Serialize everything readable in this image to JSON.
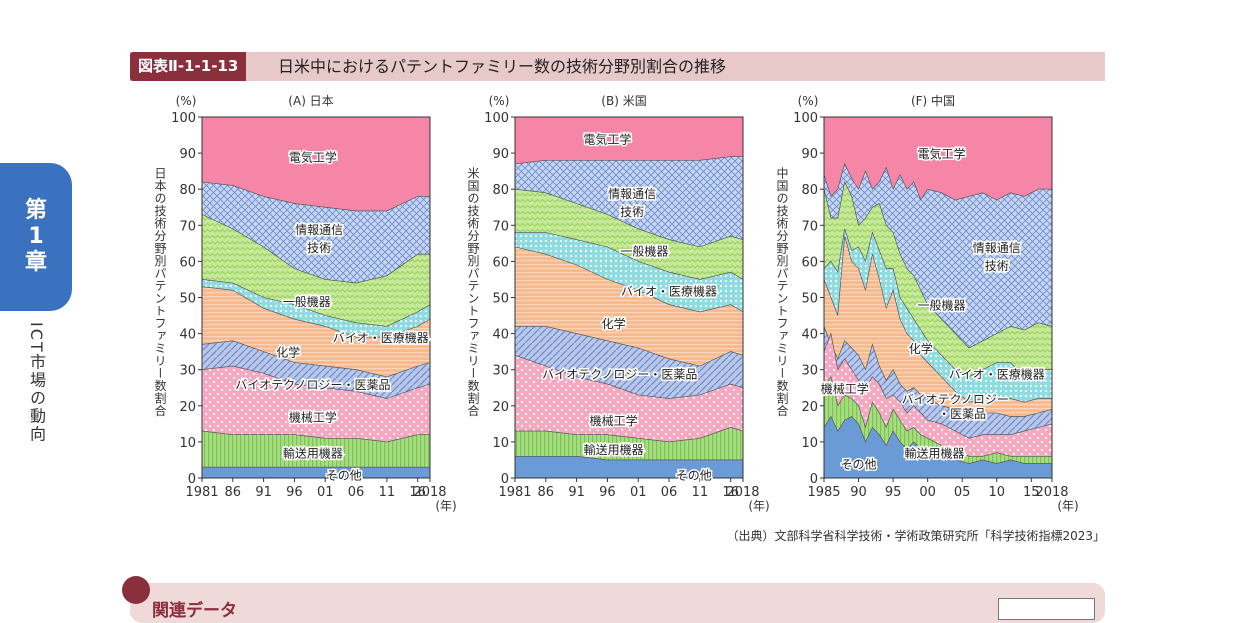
{
  "header": {
    "tag": "図表Ⅱ-1-1-13",
    "title": "日米中におけるパテントファミリー数の技術分野別割合の推移"
  },
  "side": {
    "chapter": [
      "第",
      "1",
      "章"
    ],
    "section": "ICT市場の動向"
  },
  "source": "（出典）文部科学省科学技術・学術政策研究所「科学技術指標2023」",
  "related": {
    "label": "関連データ",
    "button": ""
  },
  "colors": {
    "other": "#6b9bd6",
    "transport": "#a8dc82",
    "mech": "#f6a8c0",
    "bio": "#b9c8ea",
    "chem": "#f8b98c",
    "bioMed": "#8fdbe0",
    "general": "#c6ea9a",
    "ict": "#b7c9ef",
    "elec": "#f586a8"
  },
  "chart_data": [
    {
      "type": "area",
      "title": "(A) 日本",
      "ylabel": "日本の技術分野別パテントファミリー数割合",
      "yunit": "(%)",
      "xunit": "(年)",
      "xlim": [
        1981,
        2018
      ],
      "ylim": [
        0,
        100
      ],
      "yticks": [
        "0",
        "10",
        "20",
        "30",
        "40",
        "50",
        "60",
        "70",
        "80",
        "90",
        "100"
      ],
      "xtick_values": [
        1981,
        1986,
        1991,
        1996,
        2001,
        2006,
        2011,
        2016,
        2018
      ],
      "xtick_labels": [
        "1981",
        "86",
        "91",
        "96",
        "01",
        "06",
        "11",
        "16",
        "2018"
      ],
      "x": [
        1981,
        1986,
        1991,
        1996,
        2001,
        2006,
        2011,
        2016,
        2018
      ],
      "cumulative": [
        {
          "name": "その他",
          "key": "other",
          "values": [
            3,
            3,
            3,
            3,
            3,
            3,
            3,
            3,
            3
          ]
        },
        {
          "name": "輸送用機器",
          "key": "transport",
          "values": [
            13,
            12,
            12,
            12,
            11,
            11,
            10,
            12,
            12
          ]
        },
        {
          "name": "機械工学",
          "key": "mech",
          "values": [
            30,
            31,
            29,
            26,
            25,
            24,
            22,
            25,
            26
          ]
        },
        {
          "name": "バイオテクノロジー・医薬品",
          "key": "bio",
          "values": [
            37,
            38,
            35,
            32,
            31,
            30,
            28,
            31,
            32
          ]
        },
        {
          "name": "化学",
          "key": "chem",
          "values": [
            53,
            52,
            47,
            44,
            42,
            39,
            39,
            42,
            44
          ]
        },
        {
          "name": "バイオ・医療機器",
          "key": "bioMed",
          "values": [
            55,
            54,
            50,
            48,
            45,
            43,
            42,
            46,
            48
          ]
        },
        {
          "name": "一般機器",
          "key": "general",
          "values": [
            73,
            69,
            64,
            58,
            55,
            54,
            56,
            62,
            62
          ]
        },
        {
          "name": "情報通信技術",
          "key": "ict",
          "values": [
            82,
            81,
            78,
            76,
            75,
            74,
            74,
            78,
            78
          ]
        },
        {
          "name": "電気工学",
          "key": "elec",
          "values": [
            100,
            100,
            100,
            100,
            100,
            100,
            100,
            100,
            100
          ]
        }
      ],
      "labels": [
        {
          "text": "電気工学",
          "x": 1999,
          "y": 89
        },
        {
          "text": "情報通信",
          "x": 2000,
          "y": 69
        },
        {
          "text": "技術",
          "x": 2000,
          "y": 64
        },
        {
          "text": "一般機器",
          "x": 1998,
          "y": 49
        },
        {
          "text": "バイオ・医療機器",
          "x": 2010,
          "y": 39
        },
        {
          "text": "化学",
          "x": 1995,
          "y": 35
        },
        {
          "text": "バイオテクノロジー・医薬品",
          "x": 1999,
          "y": 26
        },
        {
          "text": "機械工学",
          "x": 1999,
          "y": 17
        },
        {
          "text": "輸送用機器",
          "x": 1999,
          "y": 7
        },
        {
          "text": "その他",
          "x": 2004,
          "y": 1
        }
      ]
    },
    {
      "type": "area",
      "title": "(B) 米国",
      "ylabel": "米国の技術分野別パテントファミリー数割合",
      "yunit": "(%)",
      "xunit": "(年)",
      "xlim": [
        1981,
        2018
      ],
      "ylim": [
        0,
        100
      ],
      "yticks": [
        "0",
        "10",
        "20",
        "30",
        "40",
        "50",
        "60",
        "70",
        "80",
        "90",
        "100"
      ],
      "xtick_values": [
        1981,
        1986,
        1991,
        1996,
        2001,
        2006,
        2011,
        2016,
        2018
      ],
      "xtick_labels": [
        "1981",
        "86",
        "91",
        "96",
        "01",
        "06",
        "11",
        "16",
        "2018"
      ],
      "x": [
        1981,
        1986,
        1991,
        1996,
        2001,
        2006,
        2011,
        2016,
        2018
      ],
      "cumulative": [
        {
          "name": "その他",
          "key": "other",
          "values": [
            6,
            6,
            6,
            5,
            5,
            5,
            5,
            5,
            5
          ]
        },
        {
          "name": "輸送用機器",
          "key": "transport",
          "values": [
            13,
            13,
            12,
            12,
            11,
            10,
            11,
            14,
            13
          ]
        },
        {
          "name": "機械工学",
          "key": "mech",
          "values": [
            34,
            31,
            28,
            26,
            23,
            22,
            23,
            26,
            25
          ]
        },
        {
          "name": "バイオテクノロジー・医薬品",
          "key": "bio",
          "values": [
            42,
            42,
            40,
            38,
            36,
            33,
            31,
            35,
            34
          ]
        },
        {
          "name": "化学",
          "key": "chem",
          "values": [
            64,
            62,
            59,
            55,
            52,
            48,
            46,
            48,
            46
          ]
        },
        {
          "name": "バイオ・医療機器",
          "key": "bioMed",
          "values": [
            68,
            68,
            66,
            64,
            60,
            57,
            55,
            57,
            55
          ]
        },
        {
          "name": "一般機器",
          "key": "general",
          "values": [
            80,
            79,
            76,
            73,
            69,
            66,
            64,
            67,
            66
          ]
        },
        {
          "name": "情報通信技術",
          "key": "ict",
          "values": [
            87,
            88,
            88,
            88,
            88,
            88,
            88,
            89,
            89
          ]
        },
        {
          "name": "電気工学",
          "key": "elec",
          "values": [
            100,
            100,
            100,
            100,
            100,
            100,
            100,
            100,
            100
          ]
        }
      ],
      "labels": [
        {
          "text": "電気工学",
          "x": 1996,
          "y": 94
        },
        {
          "text": "情報通信",
          "x": 2000,
          "y": 79
        },
        {
          "text": "技術",
          "x": 2000,
          "y": 74
        },
        {
          "text": "一般機器",
          "x": 2002,
          "y": 63
        },
        {
          "text": "バイオ・医療機器",
          "x": 2006,
          "y": 52
        },
        {
          "text": "化学",
          "x": 1997,
          "y": 43
        },
        {
          "text": "バイオテクノロジー・医薬品",
          "x": 1998,
          "y": 29
        },
        {
          "text": "機械工学",
          "x": 1997,
          "y": 16
        },
        {
          "text": "輸送用機器",
          "x": 1997,
          "y": 8
        },
        {
          "text": "その他",
          "x": 2010,
          "y": 1
        }
      ]
    },
    {
      "type": "area",
      "title": "(F) 中国",
      "ylabel": "中国の技術分野別パテントファミリー数割合",
      "yunit": "(%)",
      "xunit": "(年)",
      "xlim": [
        1985,
        2018
      ],
      "ylim": [
        0,
        100
      ],
      "yticks": [
        "0",
        "10",
        "20",
        "30",
        "40",
        "50",
        "60",
        "70",
        "80",
        "90",
        "100"
      ],
      "xtick_values": [
        1985,
        1990,
        1995,
        2000,
        2005,
        2010,
        2015,
        2018
      ],
      "xtick_labels": [
        "1985",
        "90",
        "95",
        "00",
        "05",
        "10",
        "15",
        "2018"
      ],
      "x": [
        1985,
        1986,
        1987,
        1988,
        1989,
        1990,
        1991,
        1992,
        1993,
        1994,
        1995,
        1996,
        1997,
        1998,
        1999,
        2000,
        2002,
        2004,
        2006,
        2008,
        2010,
        2012,
        2014,
        2016,
        2018
      ],
      "cumulative": [
        {
          "name": "その他",
          "key": "other",
          "values": [
            14,
            17,
            13,
            16,
            17,
            15,
            10,
            14,
            12,
            9,
            13,
            10,
            8,
            10,
            8,
            8,
            7,
            5,
            4,
            5,
            4,
            5,
            4,
            4,
            4
          ]
        },
        {
          "name": "輸送用機器",
          "key": "transport",
          "values": [
            25,
            28,
            20,
            23,
            22,
            20,
            14,
            21,
            18,
            14,
            19,
            16,
            13,
            14,
            12,
            11,
            9,
            8,
            6,
            6,
            7,
            6,
            6,
            6,
            6
          ]
        },
        {
          "name": "機械工学",
          "key": "mech",
          "values": [
            35,
            40,
            30,
            33,
            30,
            27,
            25,
            28,
            26,
            22,
            23,
            21,
            18,
            20,
            18,
            16,
            15,
            13,
            11,
            12,
            12,
            12,
            13,
            14,
            15
          ]
        },
        {
          "name": "バイオテクノロジー・医薬品",
          "key": "bio",
          "values": [
            42,
            37,
            33,
            38,
            36,
            34,
            30,
            37,
            31,
            27,
            30,
            26,
            24,
            25,
            23,
            22,
            20,
            19,
            18,
            18,
            18,
            17,
            17,
            18,
            19
          ]
        },
        {
          "name": "化学",
          "key": "chem",
          "values": [
            55,
            50,
            45,
            67,
            60,
            58,
            52,
            62,
            55,
            47,
            52,
            44,
            40,
            38,
            34,
            32,
            28,
            24,
            21,
            22,
            22,
            22,
            21,
            22,
            22
          ]
        },
        {
          "name": "バイオ・医療機器",
          "key": "bioMed",
          "values": [
            58,
            60,
            57,
            69,
            63,
            64,
            60,
            68,
            63,
            58,
            58,
            50,
            47,
            44,
            41,
            38,
            34,
            30,
            28,
            30,
            32,
            32,
            28,
            30,
            30
          ]
        },
        {
          "name": "一般機器",
          "key": "general",
          "values": [
            80,
            72,
            72,
            82,
            78,
            70,
            72,
            75,
            76,
            70,
            68,
            62,
            58,
            56,
            52,
            48,
            44,
            40,
            36,
            38,
            40,
            42,
            41,
            43,
            42
          ]
        },
        {
          "name": "情報通信技術",
          "key": "ict",
          "values": [
            84,
            78,
            80,
            87,
            83,
            80,
            85,
            80,
            82,
            86,
            80,
            84,
            80,
            82,
            77,
            80,
            79,
            77,
            78,
            79,
            77,
            79,
            78,
            80,
            80
          ]
        },
        {
          "name": "電気工学",
          "key": "elec",
          "values": [
            100,
            100,
            100,
            100,
            100,
            100,
            100,
            100,
            100,
            100,
            100,
            100,
            100,
            100,
            100,
            100,
            100,
            100,
            100,
            100,
            100,
            100,
            100,
            100,
            100
          ]
        }
      ],
      "labels": [
        {
          "text": "電気工学",
          "x": 2002,
          "y": 90
        },
        {
          "text": "情報通信",
          "x": 2010,
          "y": 64
        },
        {
          "text": "技術",
          "x": 2010,
          "y": 59
        },
        {
          "text": "一般機器",
          "x": 2002,
          "y": 48
        },
        {
          "text": "化学",
          "x": 1999,
          "y": 36
        },
        {
          "text": "バイオ・医療機器",
          "x": 2010,
          "y": 29
        },
        {
          "text": "機械工学",
          "x": 1988,
          "y": 25
        },
        {
          "text": "バイオテクノロジー",
          "x": 2004,
          "y": 22
        },
        {
          "text": "・医薬品",
          "x": 2005,
          "y": 18
        },
        {
          "text": "輸送用機器",
          "x": 2001,
          "y": 7
        },
        {
          "text": "その他",
          "x": 1990,
          "y": 4
        }
      ]
    }
  ]
}
